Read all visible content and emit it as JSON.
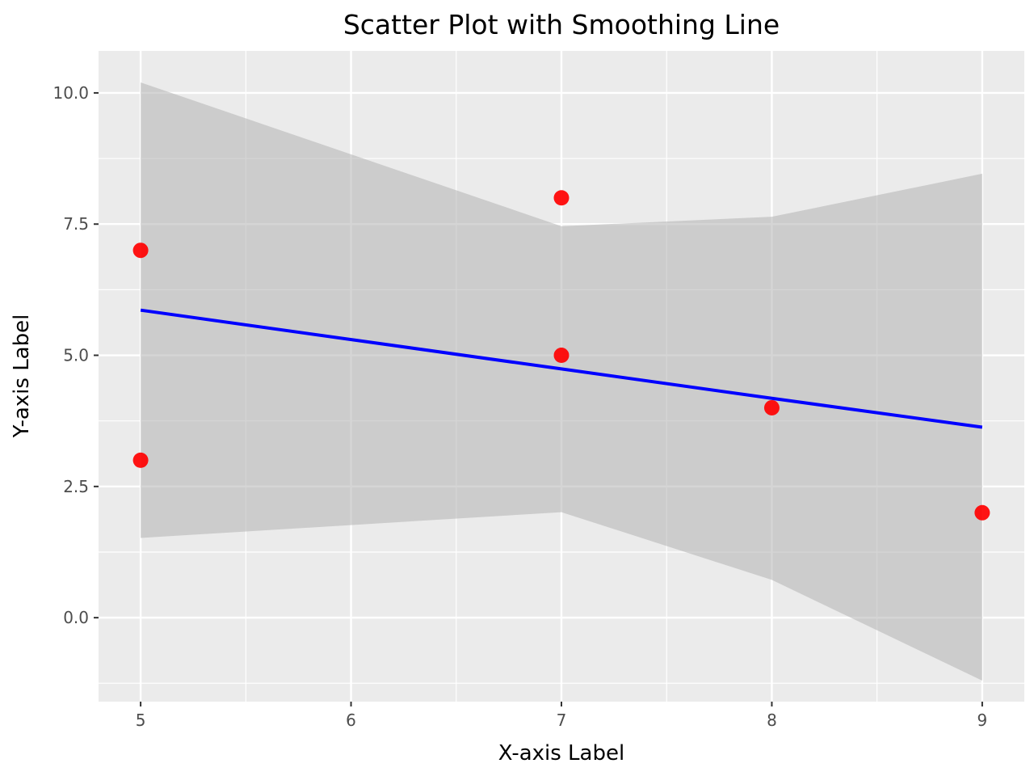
{
  "chart_data": {
    "type": "scatter",
    "title": "Scatter Plot with Smoothing Line",
    "xlabel": "X-axis Label",
    "ylabel": "Y-axis Label",
    "xlim": [
      4.8,
      9.2
    ],
    "ylim": [
      -1.6,
      10.8
    ],
    "x_ticks": [
      5,
      6,
      7,
      8,
      9
    ],
    "x_tick_labels": [
      "5",
      "6",
      "7",
      "8",
      "9"
    ],
    "x_minor_ticks": [
      5.5,
      6.5,
      7.5,
      8.5
    ],
    "y_ticks": [
      0.0,
      2.5,
      5.0,
      7.5,
      10.0
    ],
    "y_tick_labels": [
      "0.0",
      "2.5",
      "5.0",
      "7.5",
      "10.0"
    ],
    "y_minor_ticks": [
      -1.25,
      1.25,
      3.75,
      6.25,
      8.75
    ],
    "grid": true,
    "legend": "none",
    "colors": {
      "panel_background": "#ebebeb",
      "points": "#ff0000",
      "smooth_line": "#0000ff",
      "confidence_band": "#b3b3b3"
    },
    "points": [
      {
        "x": 5,
        "y": 7
      },
      {
        "x": 5,
        "y": 3
      },
      {
        "x": 7,
        "y": 8
      },
      {
        "x": 7,
        "y": 5
      },
      {
        "x": 8,
        "y": 4
      },
      {
        "x": 9,
        "y": 2
      }
    ],
    "smooth": {
      "method": "linear",
      "x": [
        5,
        7,
        8,
        9
      ],
      "y": [
        5.86,
        4.74,
        4.18,
        3.63
      ],
      "ci_lower": [
        1.52,
        2.01,
        0.72,
        -1.2
      ],
      "ci_upper": [
        10.2,
        7.46,
        7.64,
        8.46
      ]
    }
  }
}
